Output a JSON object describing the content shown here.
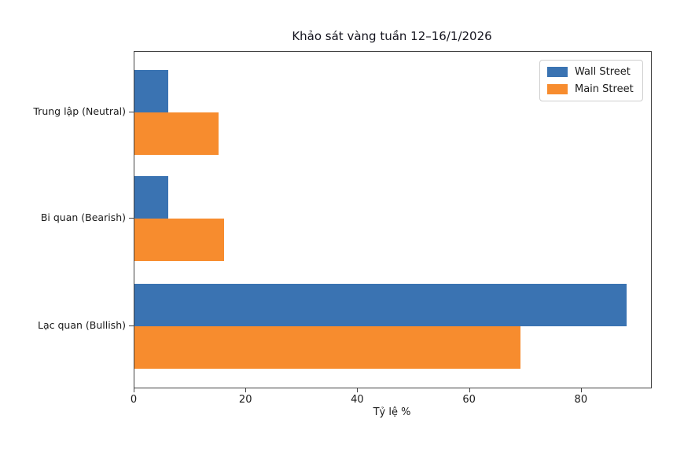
{
  "chart_data": {
    "type": "bar",
    "orientation": "horizontal",
    "title": "Khảo sát vàng tuần 12–16/1/2026",
    "xlabel": "Tỷ lệ %",
    "categories": [
      "Trung lập (Neutral)",
      "Bi quan (Bearish)",
      "Lạc quan (Bullish)"
    ],
    "series": [
      {
        "name": "Wall Street",
        "color": "#3a73b2",
        "values": [
          6,
          6,
          88
        ]
      },
      {
        "name": "Main Street",
        "color": "#f78c2e",
        "values": [
          15,
          16,
          69
        ]
      }
    ],
    "xticks": [
      0,
      20,
      40,
      60,
      80
    ],
    "xlim": [
      0,
      92.4
    ],
    "grid": false,
    "legend_position": "upper right"
  }
}
